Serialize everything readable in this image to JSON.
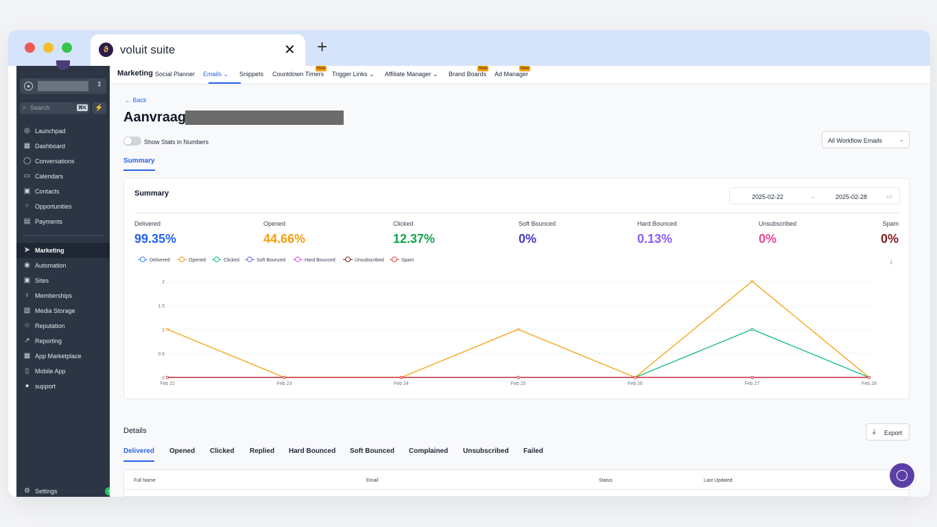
{
  "browser": {
    "tab_title": "voluit suite",
    "close_glyph": "✕",
    "new_tab_glyph": "+"
  },
  "sidebar": {
    "search_placeholder": "Search",
    "search_shortcut": "⌘K",
    "items": [
      {
        "label": "Launchpad",
        "icon": "rocket-icon",
        "glyph": "◎"
      },
      {
        "label": "Dashboard",
        "icon": "grid-icon",
        "glyph": "▦"
      },
      {
        "label": "Conversations",
        "icon": "chat-icon",
        "glyph": "◯"
      },
      {
        "label": "Calendars",
        "icon": "calendar-icon",
        "glyph": "▭"
      },
      {
        "label": "Contacts",
        "icon": "contacts-icon",
        "glyph": "▣"
      },
      {
        "label": "Opportunities",
        "icon": "opportunities-icon",
        "glyph": "⁘"
      },
      {
        "label": "Payments",
        "icon": "payments-icon",
        "glyph": "▤"
      },
      {
        "label": "Marketing",
        "icon": "send-icon",
        "glyph": "➤"
      },
      {
        "label": "Automation",
        "icon": "automation-icon",
        "glyph": "◉"
      },
      {
        "label": "Sites",
        "icon": "sites-icon",
        "glyph": "▣"
      },
      {
        "label": "Memberships",
        "icon": "memberships-icon",
        "glyph": "♀"
      },
      {
        "label": "Media Storage",
        "icon": "media-icon",
        "glyph": "▨"
      },
      {
        "label": "Reputation",
        "icon": "star-icon",
        "glyph": "☆"
      },
      {
        "label": "Reporting",
        "icon": "chart-icon",
        "glyph": "↗"
      },
      {
        "label": "App Marketplace",
        "icon": "marketplace-icon",
        "glyph": "▦"
      },
      {
        "label": "Mobile App",
        "icon": "mobile-icon",
        "glyph": "▯"
      },
      {
        "label": "support",
        "icon": "help-icon",
        "glyph": "●"
      }
    ],
    "active_item": "Marketing",
    "settings_label": "Settings"
  },
  "topnav": {
    "title": "Marketing",
    "items": [
      {
        "label": "Social Planner"
      },
      {
        "label": "Emails ⌄",
        "active": true
      },
      {
        "label": "Snippets"
      },
      {
        "label": "Countdown Timers",
        "badge": "New"
      },
      {
        "label": "Trigger Links ⌄"
      },
      {
        "label": "Affiliate Manager ⌄"
      },
      {
        "label": "Brand Boards",
        "badge": "New"
      },
      {
        "label": "Ad Manager",
        "badge": "New"
      }
    ]
  },
  "page": {
    "back_label": "← Back",
    "title": "Aanvraag",
    "toggle_label": "Show Stats in Numbers",
    "workflow_select": "All Workflow Emails",
    "summary_tab": "Summary"
  },
  "summary": {
    "title": "Summary",
    "date_from": "2025-02-22",
    "date_to": "2025-02-28",
    "stats": [
      {
        "label": "Delivered",
        "value": "99.35%",
        "color": "#2563eb"
      },
      {
        "label": "Opened",
        "value": "44.66%",
        "color": "#f59e0b"
      },
      {
        "label": "Clicked",
        "value": "12.37%",
        "color": "#16a34a"
      },
      {
        "label": "Soft Bounced",
        "value": "0%",
        "color": "#4338ca"
      },
      {
        "label": "Hard Bounced",
        "value": "0.13%",
        "color": "#8b5cf6"
      },
      {
        "label": "Unsubscribed",
        "value": "0%",
        "color": "#ec4899"
      },
      {
        "label": "Spam",
        "value": "0%",
        "color": "#7f1d1d"
      }
    ]
  },
  "chart_data": {
    "type": "line",
    "categories": [
      "Feb 22",
      "Feb 23",
      "Feb 24",
      "Feb 25",
      "Feb 26",
      "Feb 27",
      "Feb 28"
    ],
    "y_ticks": [
      "0",
      "0.5",
      "1",
      "1.5",
      "2"
    ],
    "ylim": [
      0,
      2
    ],
    "grid": true,
    "legend_position": "top-left",
    "series": [
      {
        "name": "Delivered",
        "color": "#3b82f6",
        "values": [
          0,
          0,
          0,
          0,
          0,
          0,
          0
        ]
      },
      {
        "name": "Opened",
        "color": "#f59e0b",
        "values": [
          1,
          0,
          0,
          1,
          0,
          2,
          0
        ]
      },
      {
        "name": "Clicked",
        "color": "#10b981",
        "values": [
          0,
          0,
          0,
          0,
          0,
          1,
          0
        ]
      },
      {
        "name": "Soft Bounced",
        "color": "#6366f1",
        "values": [
          0,
          0,
          0,
          0,
          0,
          0,
          0
        ]
      },
      {
        "name": "Hard Bounced",
        "color": "#d946ef",
        "values": [
          0,
          0,
          0,
          0,
          0,
          0,
          0
        ]
      },
      {
        "name": "Unsubscribed",
        "color": "#7f1d1d",
        "values": [
          0,
          0,
          0,
          0,
          0,
          0,
          0
        ]
      },
      {
        "name": "Spam",
        "color": "#ef4444",
        "values": [
          0,
          0,
          0,
          0,
          0,
          0,
          0
        ]
      }
    ]
  },
  "details": {
    "title": "Details",
    "export_label": "Export",
    "tabs": [
      "Delivered",
      "Opened",
      "Clicked",
      "Replied",
      "Hard Bounced",
      "Soft Bounced",
      "Complained",
      "Unsubscribed",
      "Failed"
    ],
    "columns": [
      "Full Name",
      "Email",
      "Status",
      "Last Updated"
    ]
  }
}
